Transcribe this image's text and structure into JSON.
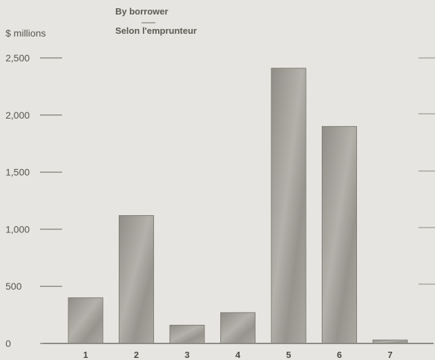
{
  "chart_data": {
    "type": "bar",
    "title": "By borrower",
    "subtitle": "Selon l'emprunteur",
    "ylabel": "$ millions",
    "xlabel": "",
    "categories": [
      "1",
      "2",
      "3",
      "4",
      "5",
      "6",
      "7"
    ],
    "values": [
      400,
      1120,
      160,
      270,
      2410,
      1900,
      30
    ],
    "ylim": [
      0,
      2500
    ],
    "yticks": [
      0,
      500,
      1000,
      1500,
      2000,
      2500
    ],
    "ytick_labels": [
      "0",
      "500",
      "1,000",
      "1,500",
      "2,000",
      "2,500"
    ],
    "grid": false,
    "colors": {
      "bar_fill": "#9c9a92",
      "bar_edge": "#7e7c74",
      "axis": "#8a8a84",
      "background": "#e6e5e1"
    }
  }
}
